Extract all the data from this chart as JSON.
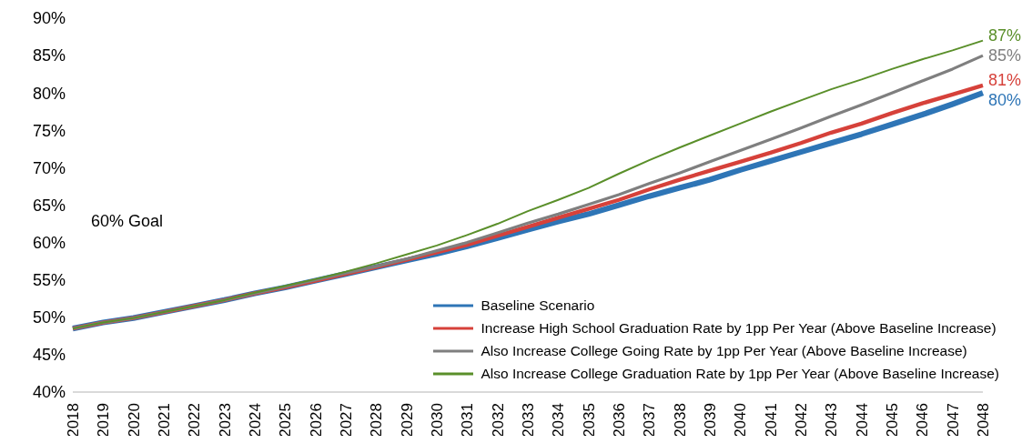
{
  "chart_data": {
    "type": "line",
    "categories": [
      "2018",
      "2019",
      "2020",
      "2021",
      "2022",
      "2023",
      "2024",
      "2025",
      "2026",
      "2027",
      "2028",
      "2029",
      "2030",
      "2031",
      "2032",
      "2033",
      "2034",
      "2035",
      "2036",
      "2037",
      "2038",
      "2039",
      "2040",
      "2041",
      "2042",
      "2043",
      "2044",
      "2045",
      "2046",
      "2047",
      "2048"
    ],
    "series": [
      {
        "name": "Baseline Scenario",
        "color": "#2e75b6",
        "values": [
          48.5,
          49.3,
          49.9,
          50.7,
          51.5,
          52.3,
          53.2,
          54.0,
          54.9,
          55.8,
          56.7,
          57.6,
          58.5,
          59.5,
          60.6,
          61.7,
          62.8,
          63.8,
          65.0,
          66.2,
          67.3,
          68.4,
          69.7,
          70.9,
          72.1,
          73.3,
          74.5,
          75.8,
          77.1,
          78.5,
          80
        ],
        "value_labels": [
          null,
          null,
          null,
          null,
          null,
          null,
          null,
          null,
          null,
          null,
          null,
          null,
          null,
          null,
          null,
          null,
          null,
          null,
          null,
          null,
          null,
          null,
          null,
          null,
          null,
          null,
          null,
          null,
          null,
          null,
          "80%"
        ]
      },
      {
        "name": "Increase High School Graduation Rate by 1pp Per Year (Above Baseline Increase)",
        "color": "#d6413a",
        "values": [
          48.5,
          49.3,
          49.9,
          50.7,
          51.5,
          52.3,
          53.2,
          54.0,
          54.9,
          55.8,
          56.7,
          57.7,
          58.7,
          59.7,
          60.9,
          62.1,
          63.3,
          64.5,
          65.7,
          67.1,
          68.4,
          69.6,
          70.8,
          72.0,
          73.3,
          74.7,
          75.9,
          77.3,
          78.6,
          79.8,
          81
        ],
        "value_labels": [
          null,
          null,
          null,
          null,
          null,
          null,
          null,
          null,
          null,
          null,
          null,
          null,
          null,
          null,
          null,
          null,
          null,
          null,
          null,
          null,
          null,
          null,
          null,
          null,
          null,
          null,
          null,
          null,
          null,
          null,
          "81%"
        ]
      },
      {
        "name": "Also Increase College Going Rate by 1pp Per Year (Above Baseline Increase)",
        "color": "#7f7f7f",
        "values": [
          48.5,
          49.3,
          49.9,
          50.7,
          51.5,
          52.3,
          53.2,
          54.1,
          55.0,
          55.9,
          56.8,
          57.8,
          58.9,
          60.0,
          61.3,
          62.6,
          63.8,
          65.1,
          66.4,
          67.9,
          69.3,
          70.8,
          72.3,
          73.8,
          75.3,
          76.9,
          78.4,
          80.0,
          81.6,
          83.2,
          85
        ],
        "value_labels": [
          null,
          null,
          null,
          null,
          null,
          null,
          null,
          null,
          null,
          null,
          null,
          null,
          null,
          null,
          null,
          null,
          null,
          null,
          null,
          null,
          null,
          null,
          null,
          null,
          null,
          null,
          null,
          null,
          null,
          null,
          "85%"
        ]
      },
      {
        "name": "Also Increase College Graduation Rate by 1pp Per Year (Above Baseline Increase)",
        "color": "#5a8f2a",
        "values": [
          48.5,
          49.3,
          49.9,
          50.7,
          51.5,
          52.3,
          53.3,
          54.2,
          55.1,
          56.1,
          57.2,
          58.4,
          59.6,
          61.0,
          62.5,
          64.2,
          65.7,
          67.3,
          69.2,
          71.0,
          72.7,
          74.3,
          75.9,
          77.5,
          79.0,
          80.5,
          81.8,
          83.2,
          84.5,
          85.7,
          87
        ],
        "value_labels": [
          null,
          null,
          null,
          null,
          null,
          null,
          null,
          null,
          null,
          null,
          null,
          null,
          null,
          null,
          null,
          null,
          null,
          null,
          null,
          null,
          null,
          null,
          null,
          null,
          null,
          null,
          null,
          null,
          null,
          null,
          "87%"
        ]
      }
    ],
    "ylim": [
      40,
      90
    ],
    "yticks": [
      {
        "value": 40,
        "label": "40%"
      },
      {
        "value": 45,
        "label": "45%"
      },
      {
        "value": 50,
        "label": "50%"
      },
      {
        "value": 55,
        "label": "55%"
      },
      {
        "value": 60,
        "label": "60%"
      },
      {
        "value": 65,
        "label": "65%"
      },
      {
        "value": 70,
        "label": "70%"
      },
      {
        "value": 75,
        "label": "75%"
      },
      {
        "value": 80,
        "label": "80%"
      },
      {
        "value": 85,
        "label": "85%"
      },
      {
        "value": 90,
        "label": "90%"
      }
    ],
    "annotations": [
      "60% Goal"
    ],
    "legend": "bottom right",
    "grid": false,
    "marker": "none",
    "line_style": "solid"
  }
}
